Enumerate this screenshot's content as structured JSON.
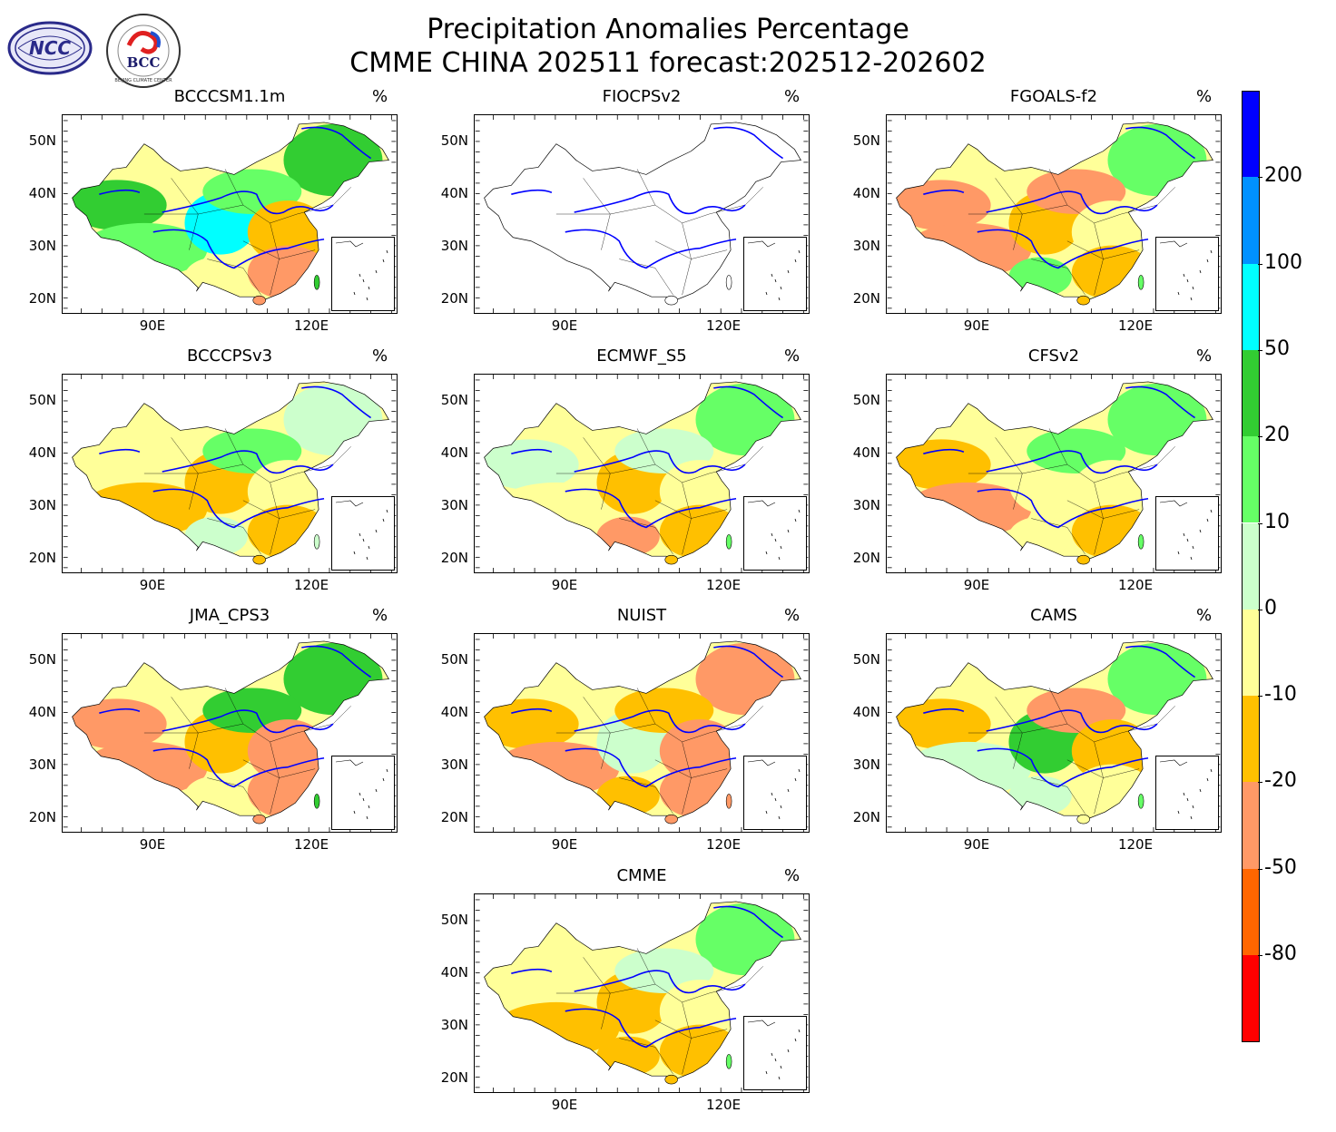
{
  "title": {
    "line1": "Precipitation Anomalies Percentage",
    "line2": "CMME CHINA 202511 forecast:202512-202602"
  },
  "logos": {
    "ncc": "NCC",
    "bcc": "BCC",
    "bcc_ring": "BEIJING CLIMATE CENTER"
  },
  "unit": "%",
  "axes": {
    "lat_labels": [
      "50N",
      "40N",
      "30N",
      "20N"
    ],
    "lon_labels": [
      "90E",
      "120E"
    ]
  },
  "panels": [
    {
      "name": "BCCCSM1.1m",
      "fills": [
        "#32cd32",
        "#32cd32",
        "#66ff66",
        "#00ffff",
        "#66ff66",
        "#ffc000",
        "#ff9966",
        "#ffff99"
      ]
    },
    {
      "name": "FIOCPSv2",
      "fills": []
    },
    {
      "name": "FGOALS-f2",
      "fills": [
        "#66ff66",
        "#ff9966",
        "#ff9966",
        "#ffc000",
        "#ff9966",
        "#ffff99",
        "#ffc000",
        "#66ff66"
      ]
    },
    {
      "name": "BCCCPSv3",
      "fills": [
        "#ccffcc",
        "#ffff99",
        "#ffc000",
        "#ffc000",
        "#66ff66",
        "#ffff99",
        "#ffc000",
        "#ccffcc"
      ]
    },
    {
      "name": "ECMWF_S5",
      "fills": [
        "#66ff66",
        "#ccffcc",
        "#ffff99",
        "#ffc000",
        "#ccffcc",
        "#ffff99",
        "#ffc000",
        "#ff9966"
      ]
    },
    {
      "name": "CFSv2",
      "fills": [
        "#66ff66",
        "#ffc000",
        "#ff9966",
        "#ffff99",
        "#66ff66",
        "#ffff99",
        "#ffc000",
        "#ffff99"
      ]
    },
    {
      "name": "JMA_CPS3",
      "fills": [
        "#32cd32",
        "#ff9966",
        "#ff9966",
        "#ffc000",
        "#32cd32",
        "#ff9966",
        "#ff9966",
        "#ffff99"
      ]
    },
    {
      "name": "NUIST",
      "fills": [
        "#ff9966",
        "#ffc000",
        "#ff9966",
        "#ccffcc",
        "#ffc000",
        "#ff9966",
        "#ff9966",
        "#ffc000"
      ]
    },
    {
      "name": "CAMS",
      "fills": [
        "#66ff66",
        "#ffc000",
        "#ccffcc",
        "#32cd32",
        "#ff9966",
        "#ffc000",
        "#ffff99",
        "#ccffcc"
      ]
    },
    {
      "name": "CMME",
      "fills": [
        "#66ff66",
        "#ffff99",
        "#ffc000",
        "#ffc000",
        "#ccffcc",
        "#ffff99",
        "#ffc000",
        "#ffc000"
      ]
    }
  ],
  "colorbar": {
    "colors": [
      "#0000ff",
      "#0091ff",
      "#00ffff",
      "#32cd32",
      "#66ff66",
      "#ccffcc",
      "#ffff99",
      "#ffc000",
      "#ff9966",
      "#ff6600",
      "#ff0000"
    ],
    "labels": [
      "200",
      "100",
      "50",
      "20",
      "10",
      "0",
      "-10",
      "-20",
      "-50",
      "-80"
    ]
  },
  "river_color": "#0000ff"
}
